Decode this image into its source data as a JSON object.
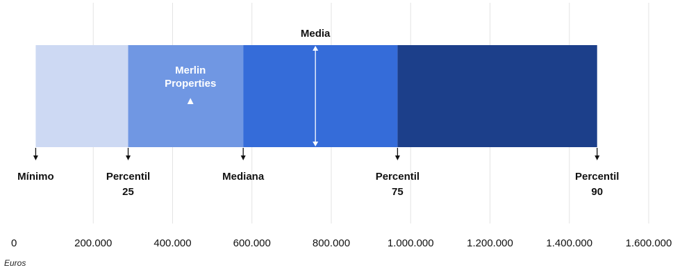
{
  "chart_data": {
    "type": "bar",
    "orientation": "horizontal",
    "xlim": [
      0,
      1600000
    ],
    "xticks": [
      0,
      200000,
      400000,
      600000,
      800000,
      1000000,
      1200000,
      1400000,
      1600000
    ],
    "xtick_labels": [
      "0",
      "200.000",
      "400.000",
      "600.000",
      "800.000",
      "1.000.000",
      "1.200.000",
      "1.400.000",
      "1.600.000"
    ],
    "xlabel": "Euros",
    "grid": true,
    "segments": [
      {
        "from": 55000,
        "to": 288000,
        "color": "#cdd9f3"
      },
      {
        "from": 288000,
        "to": 578000,
        "color": "#7097e3"
      },
      {
        "from": 578000,
        "to": 967000,
        "color": "#356cd9"
      },
      {
        "from": 967000,
        "to": 1470000,
        "color": "#1c3f8a"
      }
    ],
    "markers": [
      {
        "name": "Mínimo",
        "lines": [
          "Mínimo"
        ],
        "value": 55000
      },
      {
        "name": "Percentil 25",
        "lines": [
          "Percentil",
          "25"
        ],
        "value": 288000
      },
      {
        "name": "Mediana",
        "lines": [
          "Mediana"
        ],
        "value": 578000
      },
      {
        "name": "Percentil 75",
        "lines": [
          "Percentil",
          "75"
        ],
        "value": 967000
      },
      {
        "name": "Percentil 90",
        "lines": [
          "Percentil",
          "90"
        ],
        "value": 1470000
      }
    ],
    "mean": {
      "label": "Media",
      "value": 760000
    },
    "company": {
      "lines": [
        "Merlin",
        "Properties"
      ],
      "value": 445000,
      "marker": "▲"
    }
  }
}
